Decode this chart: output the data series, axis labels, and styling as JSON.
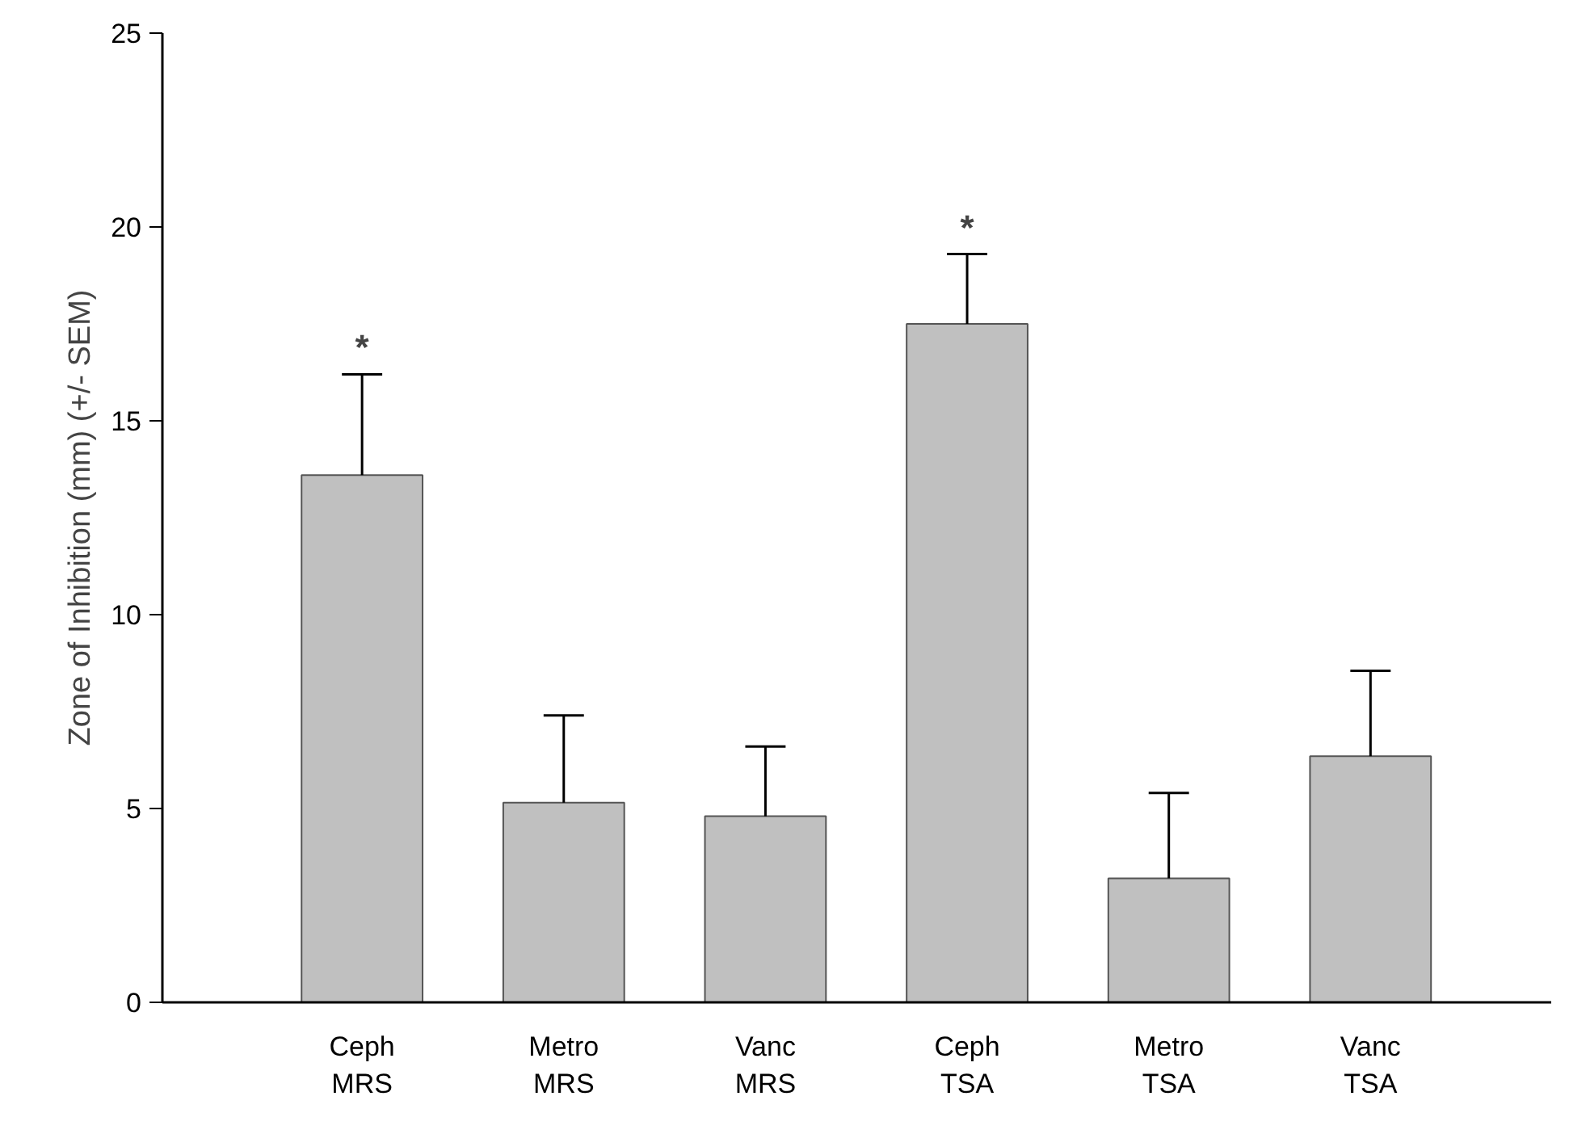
{
  "chart_data": {
    "type": "bar",
    "ylabel": "Zone of Inhibition (mm) (+/- SEM)",
    "categories": [
      "Ceph\nMRS",
      "Metro\nMRS",
      "Vanc\nMRS",
      "Ceph\nTSA",
      "Metro\nTSA",
      "Vanc\nTSA"
    ],
    "values": [
      13.6,
      5.15,
      4.8,
      17.5,
      3.2,
      6.35
    ],
    "errors": [
      [
        13.6,
        16.2
      ],
      [
        5.15,
        7.4
      ],
      [
        4.8,
        6.6
      ],
      [
        17.5,
        19.3
      ],
      [
        3.2,
        5.4
      ],
      [
        6.35,
        8.55
      ]
    ],
    "color": "#c0c0c0",
    "ylim": [
      0,
      25
    ],
    "yticks": [
      0,
      5,
      10,
      15,
      20,
      25
    ],
    "grid": false,
    "annotations": [
      {
        "text": "*",
        "x": "Ceph\nMRS",
        "y": 16.2
      },
      {
        "text": "*",
        "x": "Ceph\nTSA",
        "y": 19.3
      }
    ]
  }
}
